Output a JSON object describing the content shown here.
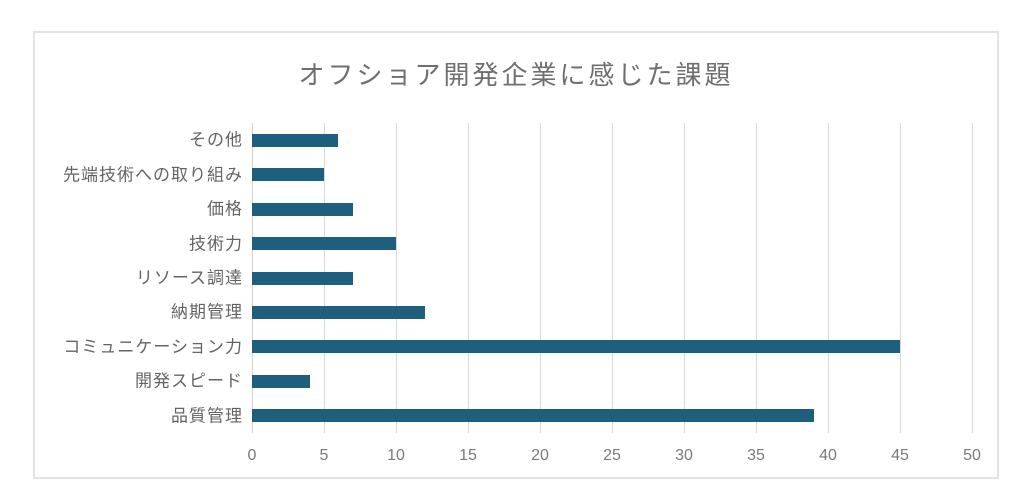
{
  "chart_data": {
    "type": "bar",
    "orientation": "horizontal",
    "title": "オフショア開発企業に感じた課題",
    "categories": [
      "その他",
      "先端技術への取り組み",
      "価格",
      "技術力",
      "リソース調達",
      "納期管理",
      "コミュニケーション力",
      "開発スピード",
      "品質管理"
    ],
    "values": [
      6,
      5,
      7,
      10,
      7,
      12,
      45,
      4,
      39
    ],
    "xlabel": "",
    "ylabel": "",
    "xlim": [
      0,
      50
    ],
    "xticks": [
      0,
      5,
      10,
      15,
      20,
      25,
      30,
      35,
      40,
      45,
      50
    ],
    "grid": true,
    "legend": "none",
    "colors": {
      "bar": "#1F5F7E",
      "gridline": "#d9d9d9",
      "axis_line": "#d2d2d2",
      "title_text": "#6f6f6f",
      "category_text": "#646464",
      "tick_text": "#7a7a7a",
      "border": "#e3e3e3",
      "background": "#ffffff"
    }
  }
}
